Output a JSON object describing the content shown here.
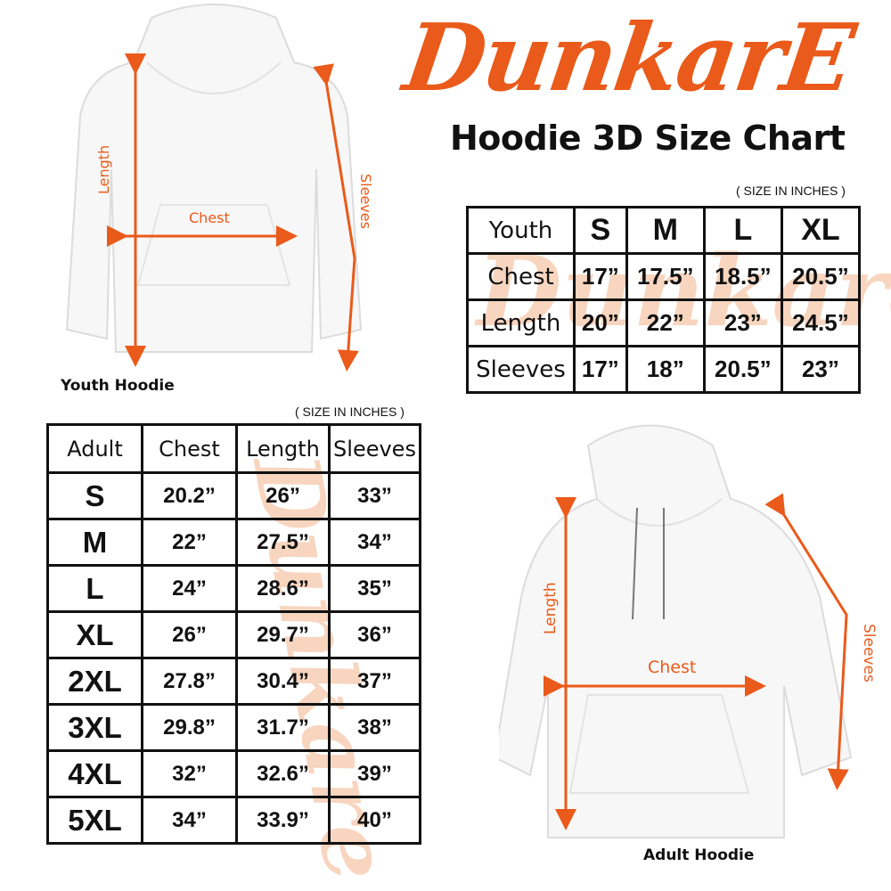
{
  "brand": {
    "logo_text": "DunkarE",
    "color": "#ea5a1a"
  },
  "title": "Hoodie 3D Size Chart",
  "youth": {
    "units": "( SIZE IN INCHES )",
    "caption": "Youth Hoodie",
    "labels": {
      "length": "Length",
      "chest": "Chest",
      "sleeves": "Sleeves"
    },
    "header": [
      "Youth",
      "S",
      "M",
      "L",
      "XL"
    ],
    "rows": [
      [
        "Chest",
        "17”",
        "17.5”",
        "18.5”",
        "20.5”"
      ],
      [
        "Length",
        "20”",
        "22”",
        "23”",
        "24.5”"
      ],
      [
        "Sleeves",
        "17”",
        "18”",
        "20.5”",
        "23”"
      ]
    ]
  },
  "adult": {
    "units": "( SIZE IN INCHES )",
    "caption": "Adult Hoodie",
    "labels": {
      "length": "Length",
      "chest": "Chest",
      "sleeves": "Sleeves"
    },
    "header": [
      "Adult",
      "Chest",
      "Length",
      "Sleeves"
    ],
    "rows": [
      [
        "S",
        "20.2”",
        "26”",
        "33”"
      ],
      [
        "M",
        "22”",
        "27.5”",
        "34”"
      ],
      [
        "L",
        "24”",
        "28.6”",
        "35”"
      ],
      [
        "XL",
        "26”",
        "29.7”",
        "36”"
      ],
      [
        "2XL",
        "27.8”",
        "30.4”",
        "37”"
      ],
      [
        "3XL",
        "29.8”",
        "31.7”",
        "38”"
      ],
      [
        "4XL",
        "32”",
        "32.6”",
        "39”"
      ],
      [
        "5XL",
        "34”",
        "33.9”",
        "40”"
      ]
    ]
  }
}
